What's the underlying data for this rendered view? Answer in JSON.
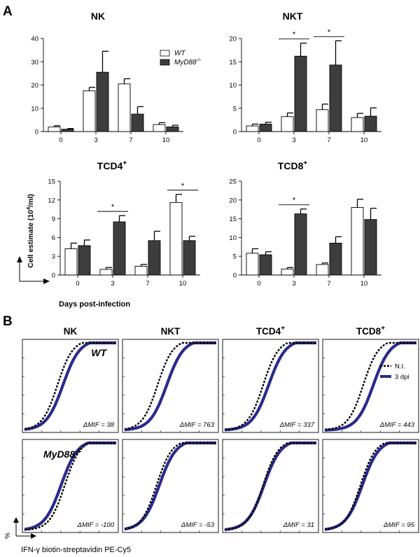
{
  "colors": {
    "wt_fill": "#ffffff",
    "ko_fill": "#3d3d3d",
    "axis": "#000000",
    "curve_3dpi": "#2b2a8c",
    "curve_ni": "#000000"
  },
  "panel_a": {
    "label": "A",
    "y_axis_label": "Cell estimate (10",
    "y_axis_label_sup": "4",
    "y_axis_label_end": "/ml)",
    "x_axis_label": "Days post-infection",
    "legend": {
      "wt": "WT",
      "ko": "MyD88",
      "ko_sup": "-/-"
    },
    "significance_mark": "*"
  },
  "chart_data": [
    {
      "type": "bar",
      "title": "NK",
      "title_sup": "",
      "categories": [
        "0",
        "3",
        "7",
        "10"
      ],
      "ylim": [
        0,
        40
      ],
      "yticks": [
        0,
        10,
        20,
        30,
        40
      ],
      "series": [
        {
          "name": "WT",
          "values": [
            2,
            17.5,
            20.5,
            3
          ],
          "errors": [
            0.5,
            1.5,
            2.2,
            0.8
          ]
        },
        {
          "name": "MyD88-/-",
          "values": [
            1,
            25.5,
            7.5,
            2
          ],
          "errors": [
            0.3,
            9,
            3.2,
            0.7
          ]
        }
      ],
      "significant": []
    },
    {
      "type": "bar",
      "title": "NKT",
      "title_sup": "",
      "categories": [
        "0",
        "3",
        "7",
        "10"
      ],
      "ylim": [
        0,
        20
      ],
      "yticks": [
        0,
        5,
        10,
        15,
        20
      ],
      "series": [
        {
          "name": "WT",
          "values": [
            1.2,
            3.2,
            4.7,
            3
          ],
          "errors": [
            0.4,
            0.8,
            1.2,
            0.9
          ]
        },
        {
          "name": "MyD88-/-",
          "values": [
            1.6,
            16.2,
            14.3,
            3.3
          ],
          "errors": [
            0.4,
            2.8,
            5.2,
            1.8
          ]
        }
      ],
      "significant": [
        1,
        2
      ]
    },
    {
      "type": "bar",
      "title": "TCD4",
      "title_sup": "+",
      "categories": [
        "0",
        "3",
        "7",
        "10"
      ],
      "ylim": [
        0,
        15
      ],
      "yticks": [
        0,
        3,
        6,
        9,
        12,
        15
      ],
      "series": [
        {
          "name": "WT",
          "values": [
            4.2,
            0.9,
            1.4,
            11.6
          ],
          "errors": [
            0.9,
            0.3,
            0.3,
            1.3
          ]
        },
        {
          "name": "MyD88-/-",
          "values": [
            4.7,
            8.5,
            5.5,
            5.5
          ],
          "errors": [
            0.9,
            1.0,
            1.5,
            0.7
          ]
        }
      ],
      "significant": [
        1,
        3
      ]
    },
    {
      "type": "bar",
      "title": "TCD8",
      "title_sup": "+",
      "categories": [
        "0",
        "3",
        "7",
        "10"
      ],
      "ylim": [
        0,
        25
      ],
      "yticks": [
        0,
        5,
        10,
        15,
        20,
        25
      ],
      "series": [
        {
          "name": "WT",
          "values": [
            5.8,
            1.6,
            2.8,
            18
          ],
          "errors": [
            1.2,
            0.4,
            0.4,
            2.2
          ]
        },
        {
          "name": "MyD88-/-",
          "values": [
            5.4,
            16.3,
            8.5,
            14.8
          ],
          "errors": [
            0.8,
            1.3,
            1.7,
            3
          ]
        }
      ],
      "significant": [
        1
      ]
    }
  ],
  "panel_b": {
    "label": "B",
    "columns": [
      {
        "name": "NK",
        "sup": ""
      },
      {
        "name": "NKT",
        "sup": ""
      },
      {
        "name": "TCD4",
        "sup": "+"
      },
      {
        "name": "TCD8",
        "sup": "+"
      }
    ],
    "row_labels": [
      {
        "name": "WT",
        "sup": ""
      },
      {
        "name": "MyD88",
        "sup": "-/-"
      }
    ],
    "legend": {
      "ni": "N.I.",
      "dpi": "3 dpi"
    },
    "y_axis_label": "%",
    "x_axis_label": "IFN-γ biotin-streptavidin PE-Cy5",
    "mif_prefix": "ΔMIF = ",
    "mif_values": [
      [
        "38",
        "763",
        "337",
        "443"
      ],
      [
        "-100",
        "-53",
        "31",
        "95"
      ]
    ],
    "curve_midpoints": {
      "ni": [
        [
          0.36,
          0.36,
          0.42,
          0.42
        ],
        [
          0.44,
          0.35,
          0.42,
          0.39
        ]
      ],
      "dpi": [
        [
          0.42,
          0.46,
          0.48,
          0.53
        ],
        [
          0.4,
          0.38,
          0.43,
          0.41
        ]
      ]
    }
  }
}
